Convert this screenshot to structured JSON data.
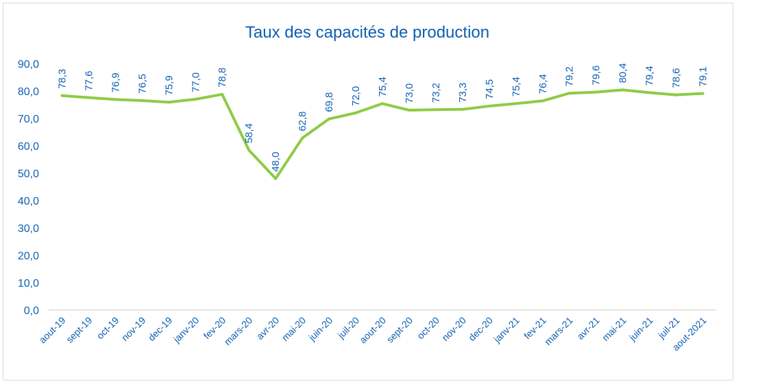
{
  "chart_data": {
    "type": "line",
    "title": "Taux des capacités de production",
    "xlabel": "",
    "ylabel": "",
    "ylim": [
      0,
      90
    ],
    "yticks": [
      "0,0",
      "10,0",
      "20,0",
      "30,0",
      "40,0",
      "50,0",
      "60,0",
      "70,0",
      "80,0",
      "90,0"
    ],
    "categories": [
      "aout-19",
      "sept-19",
      "oct-19",
      "nov-19",
      "dec-19",
      "janv-20",
      "fev-20",
      "mars-20",
      "avr-20",
      "mai-20",
      "juin-20",
      "juil-20",
      "aout-20",
      "sept-20",
      "oct-20",
      "nov-20",
      "dec-20",
      "janv-21",
      "fev-21",
      "mars-21",
      "avr-21",
      "mai-21",
      "juin-21",
      "juil-21",
      "aout-2021"
    ],
    "values": [
      78.3,
      77.6,
      76.9,
      76.5,
      75.9,
      77.0,
      78.8,
      58.4,
      48.0,
      62.8,
      69.8,
      72.0,
      75.4,
      73.0,
      73.2,
      73.3,
      74.5,
      75.4,
      76.4,
      79.2,
      79.6,
      80.4,
      79.4,
      78.6,
      79.1
    ],
    "data_labels": [
      "78,3",
      "77,6",
      "76,9",
      "76,5",
      "75,9",
      "77,0",
      "78,8",
      "58,4",
      "48,0",
      "62,8",
      "69,8",
      "72,0",
      "75,4",
      "73,0",
      "73,2",
      "73,3",
      "74,5",
      "75,4",
      "76,4",
      "79,2",
      "79,6",
      "80,4",
      "79,4",
      "78,6",
      "79,1"
    ],
    "grid": "vertical",
    "legend": "none",
    "colors": {
      "line": "#8dcb45",
      "text": "#0d5fb3",
      "grid": "#b4c7e7",
      "axis": "#c9c9c9"
    }
  }
}
